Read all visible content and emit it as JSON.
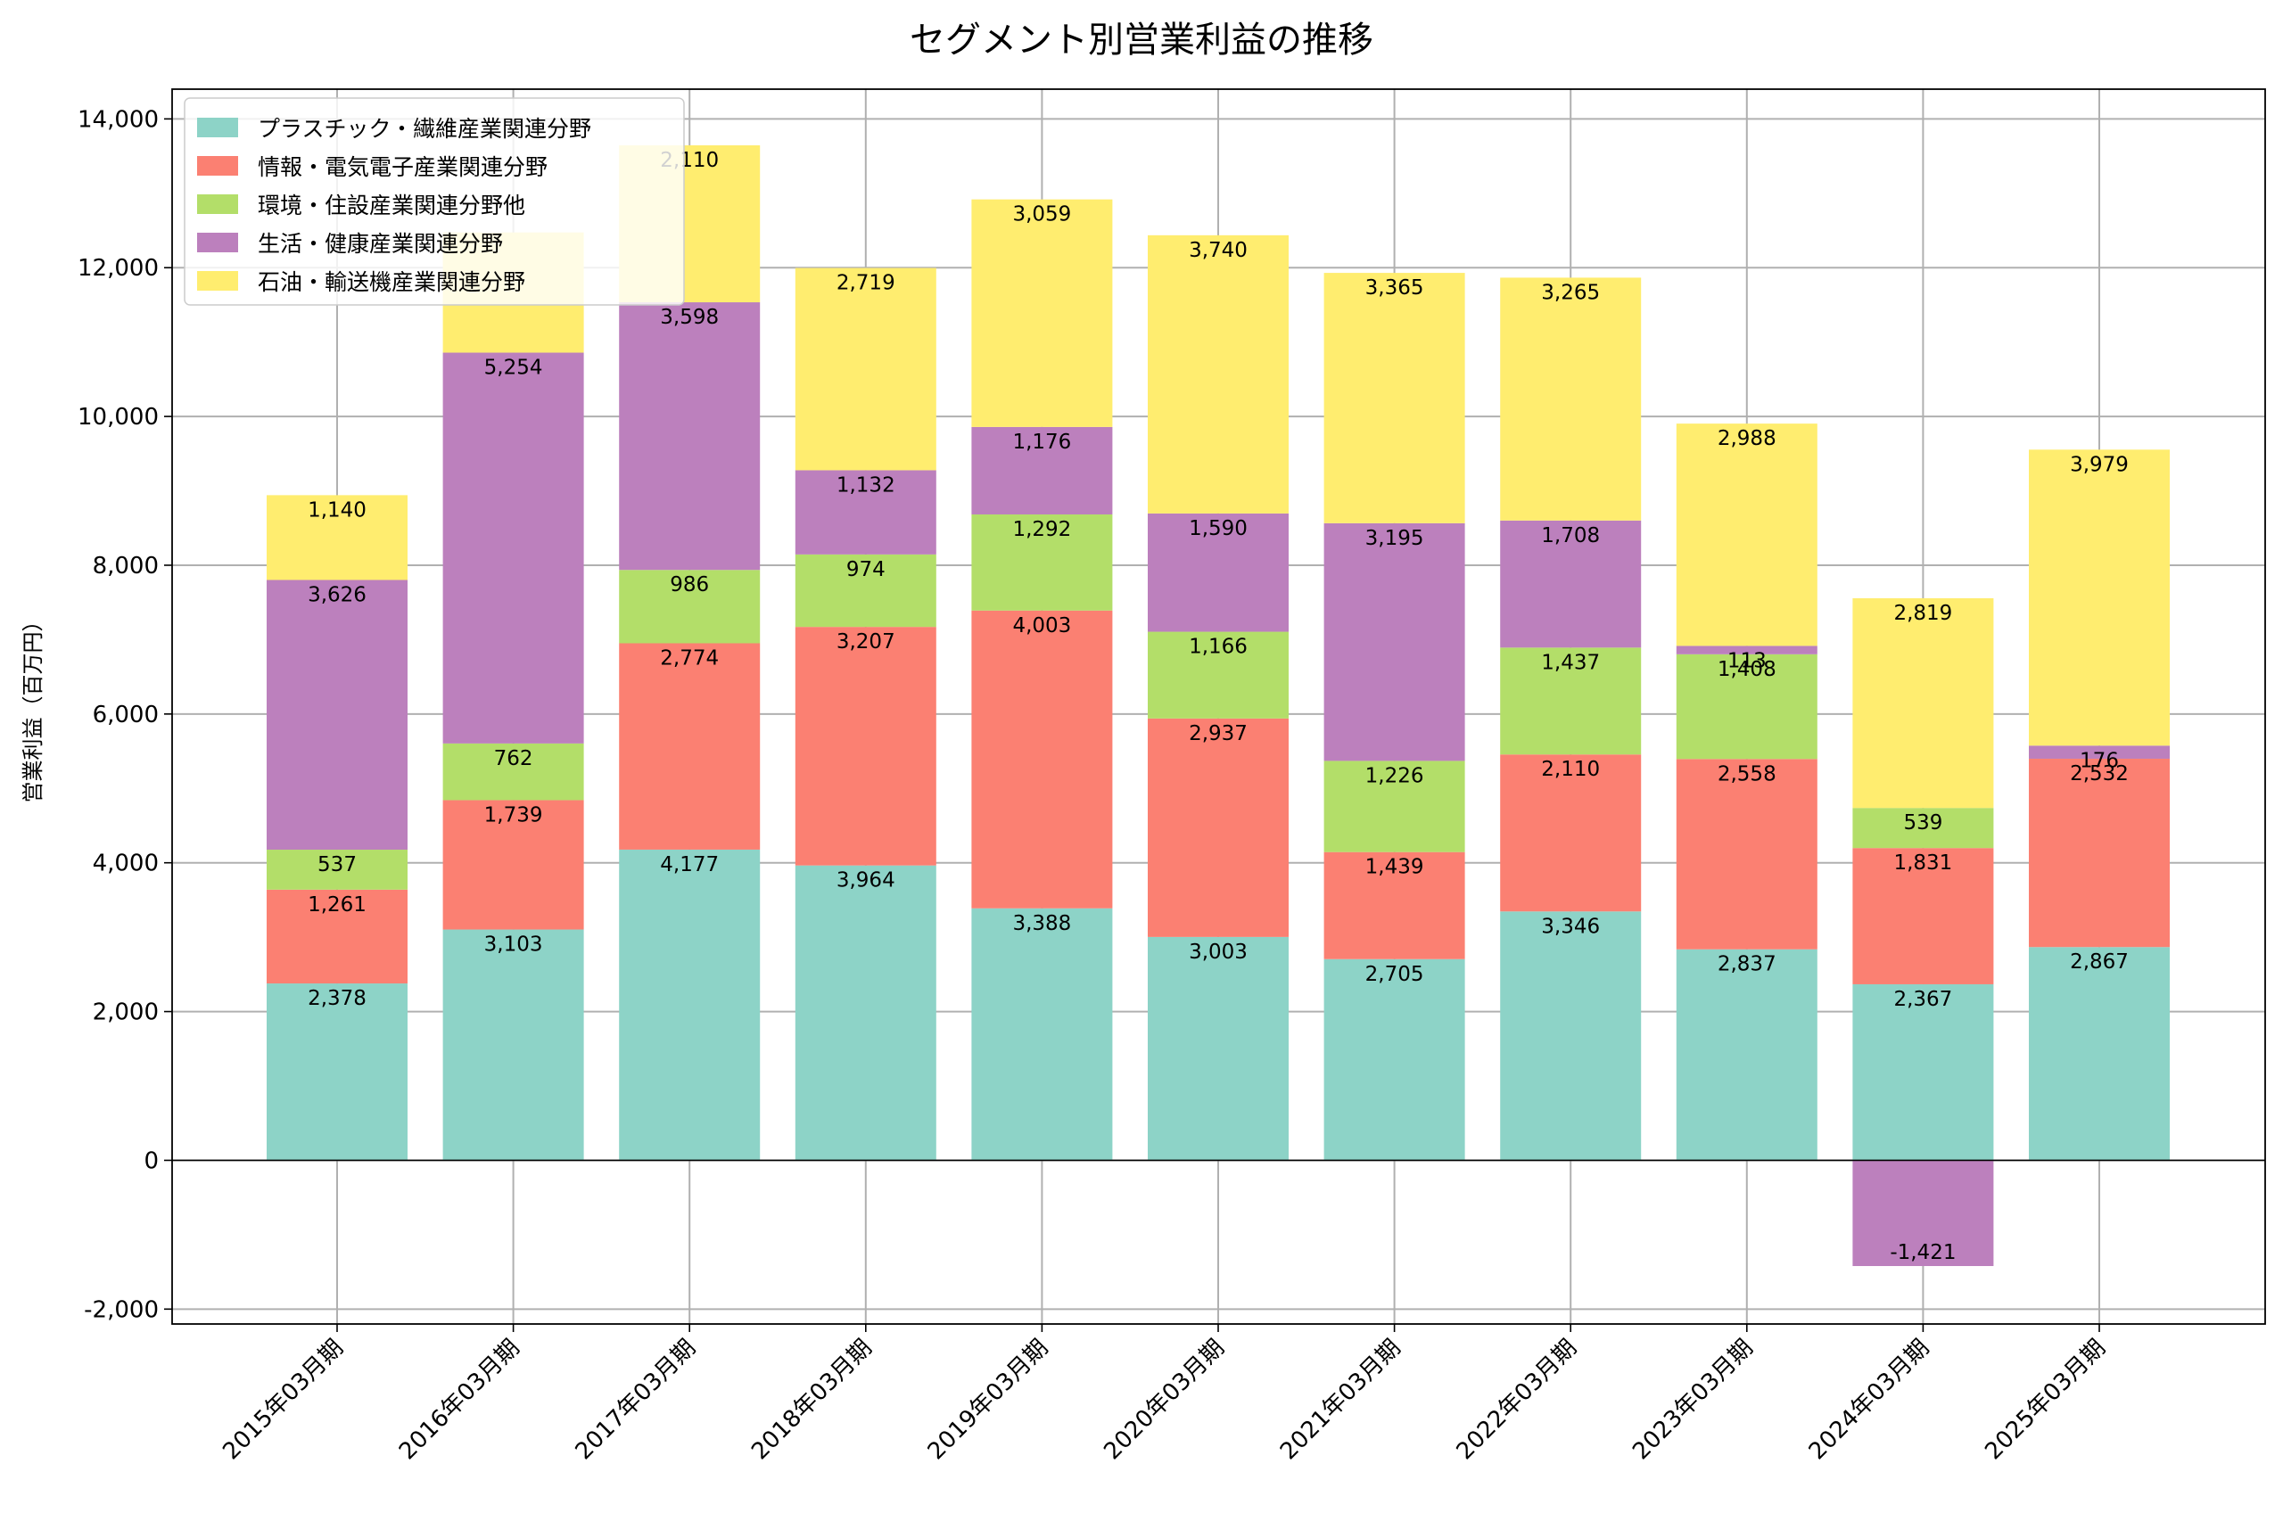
{
  "chart_data": {
    "type": "bar",
    "stacked": true,
    "title": "セグメント別営業利益の推移",
    "xlabel": "",
    "ylabel": "営業利益（百万円）",
    "ylim": [
      -2200,
      14400
    ],
    "yticks": [
      -2000,
      0,
      2000,
      4000,
      6000,
      8000,
      10000,
      12000,
      14000
    ],
    "ytick_labels": [
      "-2,000",
      "0",
      "2,000",
      "4,000",
      "6,000",
      "8,000",
      "10,000",
      "12,000",
      "14,000"
    ],
    "grid": true,
    "legend_position": "top-left",
    "categories": [
      "2015年03月期",
      "2016年03月期",
      "2017年03月期",
      "2018年03月期",
      "2019年03月期",
      "2020年03月期",
      "2021年03月期",
      "2022年03月期",
      "2023年03月期",
      "2024年03月期",
      "2025年03月期"
    ],
    "series": [
      {
        "name": "プラスチック・繊維産業関連分野",
        "color": "#8dd3c7",
        "values": [
          2378,
          3103,
          4177,
          3964,
          3388,
          3003,
          2705,
          3346,
          2837,
          2367,
          2867
        ]
      },
      {
        "name": "情報・電気電子産業関連分野",
        "color": "#fb8072",
        "values": [
          1261,
          1739,
          2774,
          3207,
          4003,
          2937,
          1439,
          2110,
          2558,
          1831,
          2532
        ]
      },
      {
        "name": "環境・住設産業関連分野他",
        "color": "#b3de69",
        "values": [
          537,
          762,
          986,
          974,
          1292,
          1166,
          1226,
          1437,
          1408,
          539,
          0
        ]
      },
      {
        "name": "生活・健康産業関連分野",
        "color": "#bc80bd",
        "values": [
          3626,
          5254,
          3598,
          1132,
          1176,
          1590,
          3195,
          1708,
          113,
          -1421,
          176
        ]
      },
      {
        "name": "石油・輸送機産業関連分野",
        "color": "#ffed6f",
        "values": [
          1140,
          1616,
          2110,
          2719,
          3059,
          3740,
          3365,
          3265,
          2988,
          2819,
          3979
        ]
      }
    ],
    "value_labels": [
      [
        "2,378",
        "3,103",
        "4,177",
        "3,964",
        "3,388",
        "3,003",
        "2,705",
        "3,346",
        "2,837",
        "2,367",
        "2,867"
      ],
      [
        "1,261",
        "1,739",
        "2,774",
        "3,207",
        "4,003",
        "2,937",
        "1,439",
        "2,110",
        "2,558",
        "1,831",
        "2,532"
      ],
      [
        "537",
        "762",
        "986",
        "974",
        "1,292",
        "1,166",
        "1,226",
        "1,437",
        "1,408",
        "539",
        ""
      ],
      [
        "3,626",
        "5,254",
        "3,598",
        "1,132",
        "1,176",
        "1,590",
        "3,195",
        "1,708",
        "113",
        "-1,421",
        "176"
      ],
      [
        "1,140",
        "",
        "2,110",
        "2,719",
        "3,059",
        "3,740",
        "3,365",
        "3,265",
        "2,988",
        "2,819",
        "3,979"
      ]
    ]
  }
}
